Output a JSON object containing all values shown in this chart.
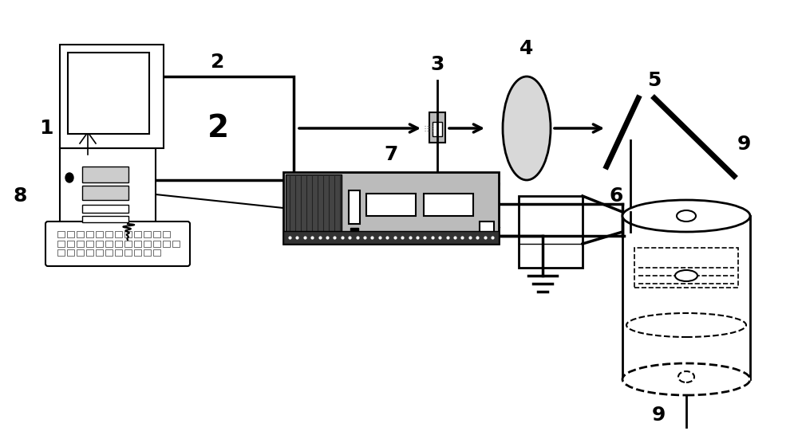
{
  "bg_color": "#ffffff",
  "black": "#000000",
  "darkgray": "#444444",
  "medgray": "#888888",
  "lightgray": "#bbbbbb",
  "figsize": [
    10.0,
    5.56
  ],
  "dpi": 100,
  "lf": 18,
  "lfw": "bold"
}
